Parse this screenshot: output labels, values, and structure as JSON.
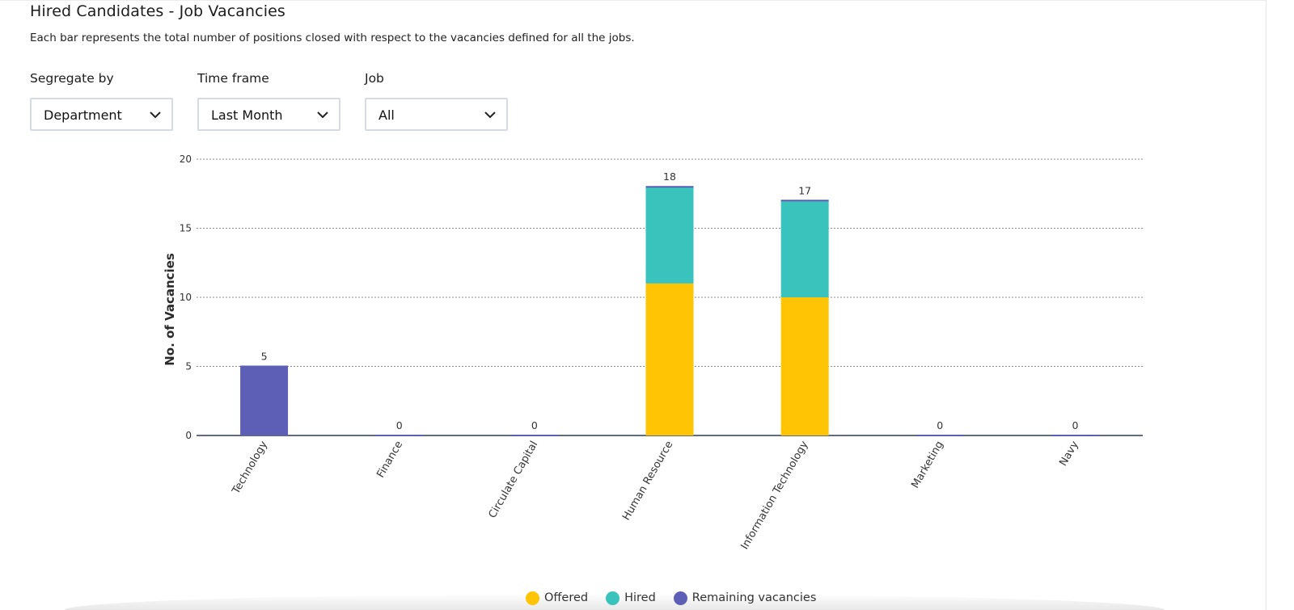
{
  "header": {
    "title": "Hired Candidates - Job Vacancies",
    "subtitle": "Each bar represents the total number of positions closed with respect to the vacancies defined for all the jobs."
  },
  "filters": {
    "segregate": {
      "label": "Segregate by",
      "value": "Department"
    },
    "timeframe": {
      "label": "Time frame",
      "value": "Last Month"
    },
    "job": {
      "label": "Job",
      "value": "All"
    }
  },
  "colors": {
    "offered": "#FFC404",
    "hired": "#39C3BC",
    "remaining": "#5C5FB5",
    "grid": "#8a8a8a",
    "axis": "#2f3b4b"
  },
  "chart_data": {
    "type": "bar",
    "stacked": true,
    "categories": [
      "Technology",
      "Finance",
      "Circulate Capital",
      "Human Resource",
      "Information Technology",
      "Marketing",
      "Navy"
    ],
    "series": [
      {
        "name": "Offered",
        "values": [
          0,
          0,
          0,
          11,
          10,
          0,
          0
        ]
      },
      {
        "name": "Hired",
        "values": [
          0,
          0,
          0,
          7,
          7,
          0,
          0
        ]
      },
      {
        "name": "Remaining vacancies",
        "values": [
          5,
          0,
          0,
          0,
          0,
          0,
          0
        ]
      }
    ],
    "totals": [
      5,
      0,
      0,
      18,
      17,
      0,
      0
    ],
    "ylabel": "No. of Vacancies",
    "xlabel": "",
    "ylim": [
      0,
      20
    ],
    "yticks": [
      0,
      5,
      10,
      15,
      20
    ],
    "grid": true,
    "legend_position": "bottom-center"
  },
  "legend": [
    {
      "label": "Offered",
      "color_key": "offered"
    },
    {
      "label": "Hired",
      "color_key": "hired"
    },
    {
      "label": "Remaining vacancies",
      "color_key": "remaining"
    }
  ]
}
